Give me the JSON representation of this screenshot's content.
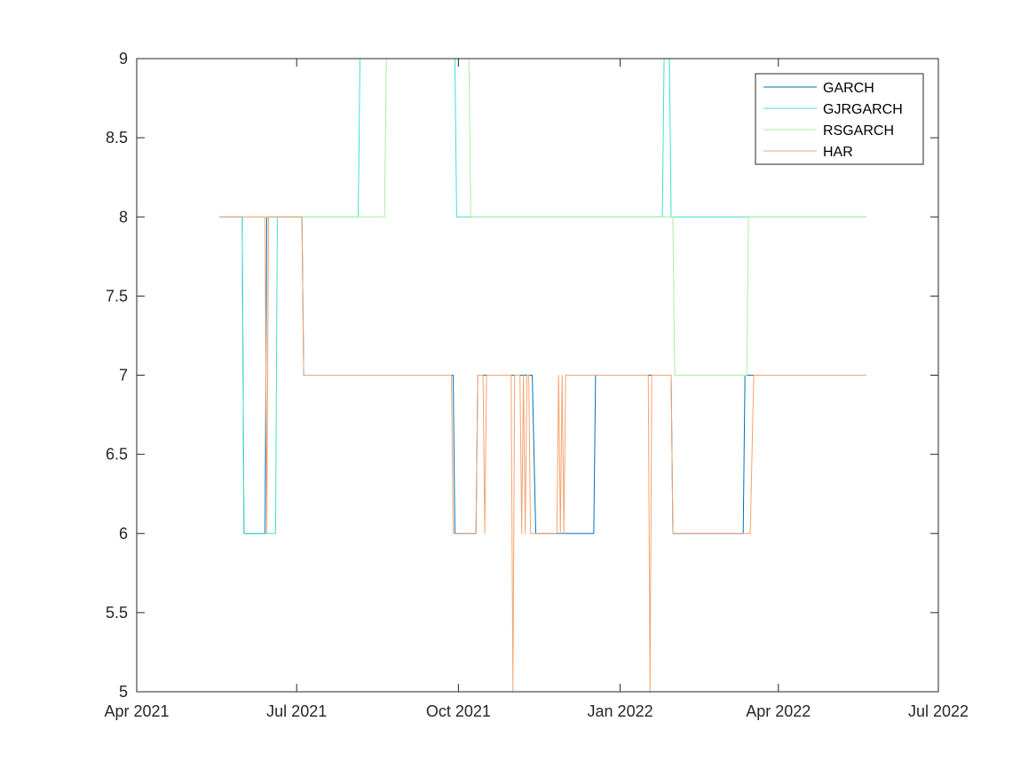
{
  "chart_data": {
    "type": "line",
    "title": "",
    "xlabel": "",
    "ylabel": "",
    "xlim": [
      "2021-04-01",
      "2022-07-01"
    ],
    "ylim": [
      5,
      9
    ],
    "x_ticks": [
      {
        "date": "2021-04-01",
        "label": "Apr 2021"
      },
      {
        "date": "2021-07-01",
        "label": "Jul 2021"
      },
      {
        "date": "2021-10-01",
        "label": "Oct 2021"
      },
      {
        "date": "2022-01-01",
        "label": "Jan 2022"
      },
      {
        "date": "2022-04-01",
        "label": "Apr 2022"
      },
      {
        "date": "2022-07-01",
        "label": "Jul 2022"
      }
    ],
    "y_ticks": [
      {
        "value": 5,
        "label": "5"
      },
      {
        "value": 5.5,
        "label": "5.5"
      },
      {
        "value": 6,
        "label": "6"
      },
      {
        "value": 6.5,
        "label": "6.5"
      },
      {
        "value": 7,
        "label": "7"
      },
      {
        "value": 7.5,
        "label": "7.5"
      },
      {
        "value": 8,
        "label": "8"
      },
      {
        "value": 8.5,
        "label": "8.5"
      },
      {
        "value": 9,
        "label": "9"
      }
    ],
    "grid": false,
    "legend_position": "top-right",
    "series": [
      {
        "name": "GARCH",
        "color": "#0072BD",
        "points": [
          [
            "2021-05-18",
            8
          ],
          [
            "2021-05-31",
            8
          ],
          [
            "2021-06-01",
            6
          ],
          [
            "2021-06-13",
            6
          ],
          [
            "2021-06-14",
            8
          ],
          [
            "2021-06-24",
            8
          ],
          [
            "2021-06-24",
            8
          ],
          [
            "2021-07-04",
            8
          ],
          [
            "2021-07-05",
            7
          ],
          [
            "2021-08-16",
            7
          ],
          [
            "2021-08-16",
            7
          ],
          [
            "2021-08-18",
            7
          ],
          [
            "2021-08-19",
            7
          ],
          [
            "2021-09-28",
            7
          ],
          [
            "2021-09-29",
            6
          ],
          [
            "2021-10-11",
            6
          ],
          [
            "2021-10-12",
            7
          ],
          [
            "2021-11-12",
            7
          ],
          [
            "2021-11-14",
            6
          ],
          [
            "2021-12-17",
            6
          ],
          [
            "2021-12-18",
            7
          ],
          [
            "2022-01-30",
            7
          ],
          [
            "2022-01-31",
            6
          ],
          [
            "2022-03-12",
            6
          ],
          [
            "2022-03-13",
            7
          ],
          [
            "2022-05-21",
            7
          ]
        ]
      },
      {
        "name": "GJRGARCH",
        "color": "#40E0D0",
        "points": [
          [
            "2021-05-18",
            8
          ],
          [
            "2021-05-31",
            8
          ],
          [
            "2021-06-01",
            6
          ],
          [
            "2021-06-19",
            6
          ],
          [
            "2021-06-20",
            8
          ],
          [
            "2021-08-05",
            8
          ],
          [
            "2021-08-06",
            9
          ],
          [
            "2021-09-29",
            9
          ],
          [
            "2021-09-30",
            8
          ],
          [
            "2022-01-25",
            8
          ],
          [
            "2022-01-26",
            9
          ],
          [
            "2022-01-29",
            9
          ],
          [
            "2022-01-30",
            8
          ],
          [
            "2022-05-21",
            8
          ]
        ]
      },
      {
        "name": "RSGARCH",
        "color": "#A8F0A0",
        "points": [
          [
            "2021-05-18",
            8
          ],
          [
            "2021-08-20",
            8
          ],
          [
            "2021-08-21",
            9
          ],
          [
            "2021-10-07",
            9
          ],
          [
            "2021-10-08",
            8
          ],
          [
            "2022-01-31",
            8
          ],
          [
            "2022-02-01",
            7
          ],
          [
            "2022-03-14",
            7
          ],
          [
            "2022-03-15",
            8
          ],
          [
            "2022-05-21",
            8
          ]
        ]
      },
      {
        "name": "HAR",
        "color": "#F4A470",
        "points": [
          [
            "2021-05-18",
            8
          ],
          [
            "2021-06-13",
            8
          ],
          [
            "2021-06-14",
            6
          ],
          [
            "2021-06-15",
            8
          ],
          [
            "2021-07-04",
            8
          ],
          [
            "2021-07-05",
            7
          ],
          [
            "2021-09-27",
            7
          ],
          [
            "2021-09-28",
            6
          ],
          [
            "2021-10-11",
            6
          ],
          [
            "2021-10-12",
            7
          ],
          [
            "2021-10-15",
            7
          ],
          [
            "2021-10-16",
            6
          ],
          [
            "2021-10-17",
            7
          ],
          [
            "2021-10-31",
            7
          ],
          [
            "2021-11-01",
            5
          ],
          [
            "2021-11-02",
            7
          ],
          [
            "2021-11-05",
            7
          ],
          [
            "2021-11-06",
            6
          ],
          [
            "2021-11-07",
            7
          ],
          [
            "2021-11-08",
            6
          ],
          [
            "2021-11-09",
            7
          ],
          [
            "2021-11-10",
            7
          ],
          [
            "2021-11-11",
            6
          ],
          [
            "2021-11-26",
            6
          ],
          [
            "2021-11-27",
            7
          ],
          [
            "2021-11-28",
            6
          ],
          [
            "2021-11-29",
            7
          ],
          [
            "2021-11-30",
            6
          ],
          [
            "2021-12-01",
            7
          ],
          [
            "2022-01-17",
            7
          ],
          [
            "2022-01-18",
            5
          ],
          [
            "2022-01-19",
            7
          ],
          [
            "2022-01-30",
            7
          ],
          [
            "2022-01-31",
            6
          ],
          [
            "2022-03-16",
            6
          ],
          [
            "2022-03-18",
            7
          ],
          [
            "2022-05-21",
            7
          ]
        ]
      }
    ]
  }
}
